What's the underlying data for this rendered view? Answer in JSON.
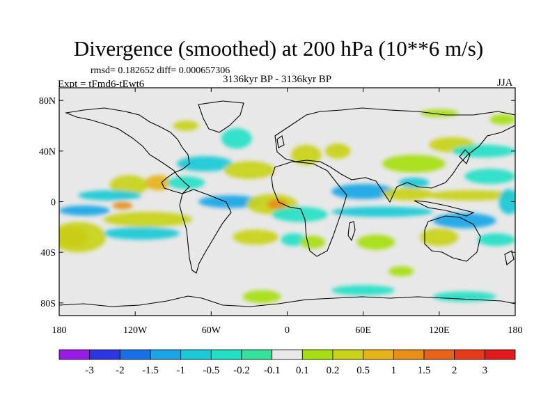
{
  "title": "Divergence (smoothed) at 200 hPa (10**6 m/s)",
  "stats": "rmsd= 0.182652 diff= 0.000657306",
  "period": "3136kyr BP - 3136kyr BP",
  "experiment": "Expt = tFmd6-tEwt6",
  "season": "JJA",
  "map": {
    "projection": "cylindrical equidistant",
    "lon_range": [
      -180,
      180
    ],
    "lat_range": [
      -90,
      90
    ],
    "y_ticks": [
      {
        "label": "80N",
        "lat": 80
      },
      {
        "label": "40N",
        "lat": 40
      },
      {
        "label": "0",
        "lat": 0
      },
      {
        "label": "40S",
        "lat": -40
      },
      {
        "label": "80S",
        "lat": -80
      }
    ],
    "x_ticks": [
      {
        "label": "180",
        "lon": -180
      },
      {
        "label": "120W",
        "lon": -120
      },
      {
        "label": "60W",
        "lon": -60
      },
      {
        "label": "0",
        "lon": 0
      },
      {
        "label": "60E",
        "lon": 60
      },
      {
        "label": "120E",
        "lon": 120
      },
      {
        "label": "180",
        "lon": 180
      }
    ],
    "background_color": "#e8e8e8",
    "features": [
      {
        "lon": -160,
        "lat": -7,
        "rlon": 20,
        "rlat": 4,
        "level": "-1"
      },
      {
        "lon": -170,
        "lat": -28,
        "rlon": 13,
        "rlat": 8,
        "level": "1.5"
      },
      {
        "lon": -165,
        "lat": -28,
        "rlon": 22,
        "rlat": 12,
        "level": "0.5"
      },
      {
        "lon": -125,
        "lat": 13,
        "rlon": 15,
        "rlat": 8,
        "level": "0.5"
      },
      {
        "lon": -102,
        "lat": 15,
        "rlon": 10,
        "rlat": 6,
        "level": "1"
      },
      {
        "lon": -130,
        "lat": -3,
        "rlon": 8,
        "rlat": 3,
        "level": "1.5"
      },
      {
        "lon": -110,
        "lat": -14,
        "rlon": 35,
        "rlat": 6,
        "level": "0.5"
      },
      {
        "lon": -115,
        "lat": -25,
        "rlon": 30,
        "rlat": 5,
        "level": "-0.5"
      },
      {
        "lon": -140,
        "lat": 5,
        "rlon": 25,
        "rlat": 4,
        "level": "-0.5"
      },
      {
        "lon": -65,
        "lat": 30,
        "rlon": 22,
        "rlat": 6,
        "level": "-0.5"
      },
      {
        "lon": -40,
        "lat": 50,
        "rlon": 12,
        "rlat": 8,
        "level": "-0.2"
      },
      {
        "lon": -30,
        "lat": 25,
        "rlon": 20,
        "rlat": 7,
        "level": "0.5"
      },
      {
        "lon": -80,
        "lat": 15,
        "rlon": 15,
        "rlat": 5,
        "level": "-0.2"
      },
      {
        "lon": -45,
        "lat": 0,
        "rlon": 25,
        "rlat": 5,
        "level": "-1"
      },
      {
        "lon": -12,
        "lat": -2,
        "rlon": 20,
        "rlat": 8,
        "level": "0.5"
      },
      {
        "lon": -8,
        "lat": -2,
        "rlon": 8,
        "rlat": 4,
        "level": "1.5"
      },
      {
        "lon": 10,
        "lat": -10,
        "rlon": 22,
        "rlat": 6,
        "level": "-0.2"
      },
      {
        "lon": -25,
        "lat": -28,
        "rlon": 18,
        "rlat": 6,
        "level": "0.5"
      },
      {
        "lon": 5,
        "lat": -30,
        "rlon": 10,
        "rlat": 5,
        "level": "-0.2"
      },
      {
        "lon": 15,
        "lat": 37,
        "rlon": 12,
        "rlat": 8,
        "level": "0.5"
      },
      {
        "lon": 40,
        "lat": 40,
        "rlon": 10,
        "rlat": 6,
        "level": "0.5"
      },
      {
        "lon": 60,
        "lat": 8,
        "rlon": 25,
        "rlat": 6,
        "level": "-1"
      },
      {
        "lon": 95,
        "lat": 6,
        "rlon": 20,
        "rlat": 5,
        "level": "0.5"
      },
      {
        "lon": 75,
        "lat": -8,
        "rlon": 40,
        "rlat": 4,
        "level": "-0.5"
      },
      {
        "lon": 100,
        "lat": 30,
        "rlon": 25,
        "rlat": 7,
        "level": "0.2"
      },
      {
        "lon": 130,
        "lat": 45,
        "rlon": 18,
        "rlat": 6,
        "level": "0.5"
      },
      {
        "lon": 155,
        "lat": 40,
        "rlon": 25,
        "rlat": 5,
        "level": "-0.2"
      },
      {
        "lon": 160,
        "lat": 20,
        "rlon": 20,
        "rlat": 6,
        "level": "-0.2"
      },
      {
        "lon": 145,
        "lat": 5,
        "rlon": 35,
        "rlat": 4,
        "level": "0.5"
      },
      {
        "lon": 140,
        "lat": -15,
        "rlon": 25,
        "rlat": 6,
        "level": "-1"
      },
      {
        "lon": 120,
        "lat": -28,
        "rlon": 15,
        "rlat": 7,
        "level": "0.5"
      },
      {
        "lon": 165,
        "lat": -30,
        "rlon": 15,
        "rlat": 5,
        "level": "-0.2"
      },
      {
        "lon": 70,
        "lat": -32,
        "rlon": 15,
        "rlat": 6,
        "level": "0.2"
      },
      {
        "lon": 20,
        "lat": -32,
        "rlon": 10,
        "rlat": 5,
        "level": "0.2"
      },
      {
        "lon": -20,
        "lat": -75,
        "rlon": 15,
        "rlat": 5,
        "level": "0.2"
      },
      {
        "lon": 60,
        "lat": -70,
        "rlon": 25,
        "rlat": 4,
        "level": "-0.2"
      },
      {
        "lon": 140,
        "lat": -75,
        "rlon": 25,
        "rlat": 4,
        "level": "-0.2"
      },
      {
        "lon": 90,
        "lat": -55,
        "rlon": 10,
        "rlat": 4,
        "level": "0.2"
      },
      {
        "lon": -80,
        "lat": 60,
        "rlon": 10,
        "rlat": 4,
        "level": "0.5"
      },
      {
        "lon": 120,
        "lat": 70,
        "rlon": 15,
        "rlat": 3,
        "level": "0.2"
      },
      {
        "lon": 170,
        "lat": 65,
        "rlon": 10,
        "rlat": 4,
        "level": "0.2"
      },
      {
        "lon": 100,
        "lat": 15,
        "rlon": 12,
        "rlat": 4,
        "level": "-0.5"
      },
      {
        "lon": 175,
        "lat": 0,
        "rlon": 8,
        "rlat": 10,
        "level": "-0.5"
      }
    ]
  },
  "colorbar": {
    "labels": [
      "-3",
      "-2",
      "-1.5",
      "-1",
      "-0.5",
      "-0.2",
      "-0.1",
      "0.1",
      "0.2",
      "0.5",
      "1",
      "1.5",
      "2",
      "3"
    ],
    "colors": [
      "#9a1ae6",
      "#2b35e0",
      "#1a6ee6",
      "#1aa6e6",
      "#19c9d6",
      "#22e0c6",
      "#35e09a",
      "#e8e8e8",
      "#a6de12",
      "#c8d31a",
      "#e6b31a",
      "#e68f14",
      "#e6641a",
      "#e63a1a",
      "#e01a1a"
    ]
  },
  "level_colors": {
    "-2": "#2b35e0",
    "-1.5": "#1a6ee6",
    "-1": "#1aa6e6",
    "-0.5": "#19c9d6",
    "-0.2": "#22e0c6",
    "0.2": "#a6de12",
    "0.5": "#c8d31a",
    "1": "#e6b31a",
    "1.5": "#e68f14",
    "2": "#e6641a"
  }
}
